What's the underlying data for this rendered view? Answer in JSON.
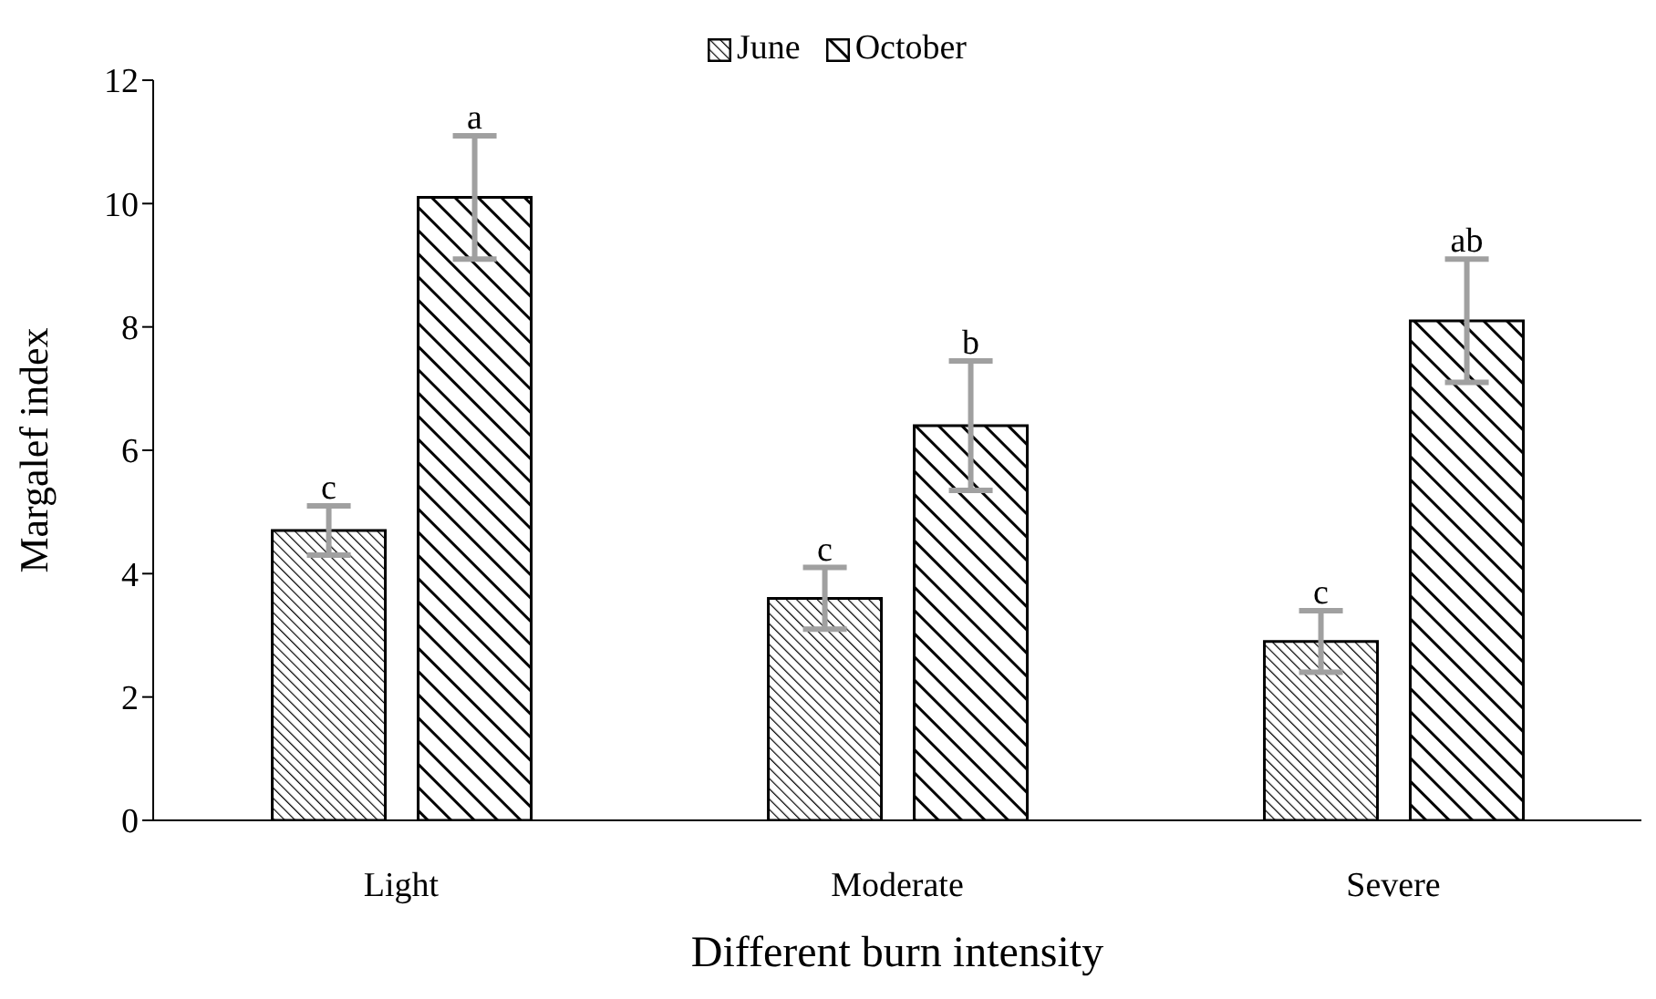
{
  "chart_data": {
    "type": "bar",
    "xlabel": "Different burn intensity",
    "ylabel": "Margalef index",
    "categories": [
      "Light",
      "Moderate",
      "Severe"
    ],
    "series": [
      {
        "name": "June",
        "color": "#000000",
        "values": [
          4.7,
          3.6,
          2.9
        ],
        "errors": [
          0.4,
          0.5,
          0.5
        ]
      },
      {
        "name": "October",
        "color": "#000000",
        "values": [
          10.1,
          6.4,
          8.1
        ],
        "errors": [
          1.0,
          1.05,
          1.0
        ]
      }
    ],
    "ylim": [
      0,
      12
    ],
    "yticks": [
      0,
      2,
      4,
      6,
      8,
      10,
      12
    ],
    "grid": false,
    "legend": "top",
    "annotations": [
      "c",
      "a",
      "c",
      "b",
      "c",
      "ab"
    ]
  }
}
